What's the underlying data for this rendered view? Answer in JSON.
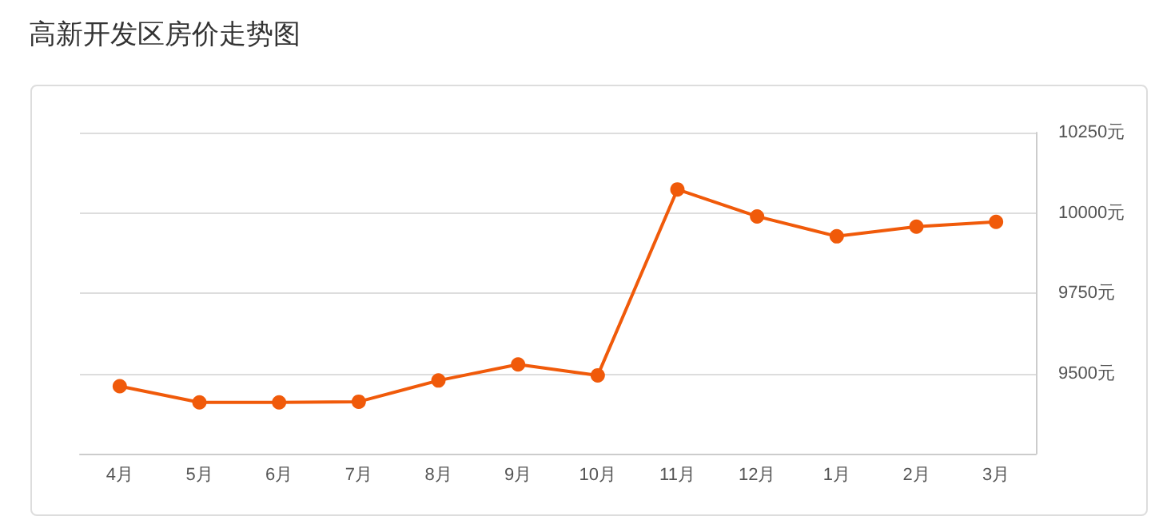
{
  "chart_data": {
    "type": "line",
    "title": "高新开发区房价走势图",
    "categories": [
      "4月",
      "5月",
      "6月",
      "7月",
      "8月",
      "9月",
      "10月",
      "11月",
      "12月",
      "1月",
      "2月",
      "3月"
    ],
    "series": [
      {
        "color": "#f05a0a",
        "values": [
          9460,
          9410,
          9410,
          9412,
          9478,
          9528,
          9494,
          10073,
          9989,
          9927,
          9957,
          9972
        ]
      }
    ],
    "ylim": [
      9250,
      10250
    ],
    "yticks": [
      {
        "value": 9250,
        "label": null
      },
      {
        "value": 9500,
        "label": "9500元"
      },
      {
        "value": 9750,
        "label": "9750元"
      },
      {
        "value": 10000,
        "label": "10000元"
      },
      {
        "value": 10250,
        "label": "10250元"
      }
    ],
    "grid": "y",
    "marker": "circle",
    "line_style": "solid"
  }
}
